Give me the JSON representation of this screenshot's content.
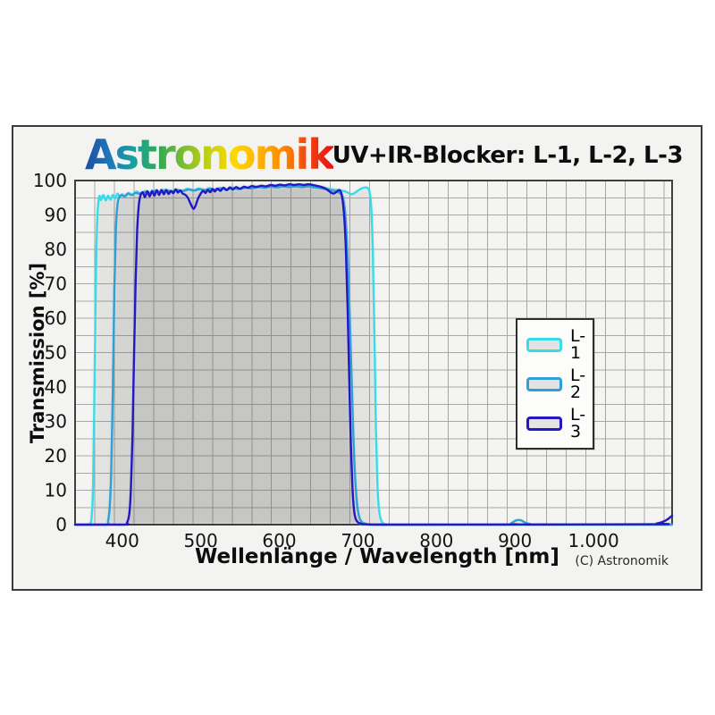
{
  "header": {
    "logo_text": "Astronomik",
    "logo_gradient": [
      "#1d4da0",
      "#1e78bb",
      "#17a29b",
      "#33ab52",
      "#7cbe33",
      "#c3d10e",
      "#ffd800",
      "#ffb300",
      "#ff8800",
      "#f2420e",
      "#e31414"
    ],
    "title": "UV+IR-Blocker: L-1, L-2, L-3"
  },
  "footer": {
    "copyright": "(C) Astronomik"
  },
  "chart_data": {
    "type": "line",
    "title": "UV+IR-Blocker: L-1, L-2, L-3",
    "xlabel": "Wellenlänge / Wavelength [nm]",
    "ylabel": "Transmission [%]",
    "xlim": [
      340,
      1100
    ],
    "ylim": [
      0,
      100
    ],
    "x_tick_values": [
      400,
      500,
      600,
      700,
      800,
      900,
      1000
    ],
    "x_tick_labels": [
      "400",
      "500",
      "600",
      "700",
      "800",
      "900",
      "1.000"
    ],
    "y_tick_values": [
      0,
      10,
      20,
      30,
      40,
      50,
      60,
      70,
      80,
      90,
      100
    ],
    "y_tick_labels": [
      "0",
      "10",
      "20",
      "30",
      "40",
      "50",
      "60",
      "70",
      "80",
      "90",
      "100"
    ],
    "x_minor_step": 25,
    "y_minor_step": 5,
    "grid": true,
    "legend_position": "right-middle",
    "colors": {
      "plot_bg": "#f4f4f2",
      "grid": "#a8a8a8",
      "frame": "#3f3f3f",
      "area_fill": "rgba(80,80,80,0.10)"
    },
    "series": [
      {
        "name": "L-1",
        "color": "#38dce8",
        "points": [
          [
            340,
            0
          ],
          [
            356,
            0
          ],
          [
            359,
            0.3
          ],
          [
            361,
            2
          ],
          [
            363,
            12
          ],
          [
            365,
            45
          ],
          [
            367,
            78
          ],
          [
            369,
            92
          ],
          [
            371,
            95.5
          ],
          [
            373,
            94.3
          ],
          [
            376,
            95.8
          ],
          [
            379,
            94.2
          ],
          [
            382,
            95.6
          ],
          [
            385,
            94.4
          ],
          [
            388,
            95.8
          ],
          [
            391,
            94.8
          ],
          [
            394,
            96.2
          ],
          [
            397,
            95.2
          ],
          [
            400,
            96
          ],
          [
            404,
            95.4
          ],
          [
            408,
            96.4
          ],
          [
            413,
            95.8
          ],
          [
            418,
            96.8
          ],
          [
            424,
            96.2
          ],
          [
            430,
            97
          ],
          [
            436,
            96.4
          ],
          [
            442,
            97.2
          ],
          [
            448,
            96.6
          ],
          [
            455,
            97.4
          ],
          [
            462,
            96.8
          ],
          [
            469,
            97.4
          ],
          [
            476,
            96.9
          ],
          [
            483,
            97.6
          ],
          [
            490,
            97
          ],
          [
            497,
            97.7
          ],
          [
            504,
            97.1
          ],
          [
            511,
            97.8
          ],
          [
            518,
            97.2
          ],
          [
            525,
            97.9
          ],
          [
            532,
            97.3
          ],
          [
            539,
            98
          ],
          [
            547,
            97.5
          ],
          [
            555,
            98.1
          ],
          [
            563,
            97.8
          ],
          [
            571,
            98.3
          ],
          [
            580,
            98.1
          ],
          [
            589,
            98.4
          ],
          [
            598,
            98.2
          ],
          [
            607,
            98.5
          ],
          [
            616,
            98.3
          ],
          [
            625,
            98.5
          ],
          [
            634,
            98.3
          ],
          [
            643,
            98.4
          ],
          [
            652,
            98.1
          ],
          [
            660,
            97.8
          ],
          [
            668,
            97.4
          ],
          [
            676,
            97.2
          ],
          [
            683,
            96.9
          ],
          [
            688,
            96.4
          ],
          [
            692,
            96
          ],
          [
            696,
            96.4
          ],
          [
            701,
            97.2
          ],
          [
            706,
            97.8
          ],
          [
            710,
            98
          ],
          [
            713,
            97.7
          ],
          [
            715,
            96.5
          ],
          [
            717,
            92
          ],
          [
            719,
            80
          ],
          [
            721,
            55
          ],
          [
            723,
            28
          ],
          [
            725,
            11
          ],
          [
            727,
            4
          ],
          [
            730,
            1
          ],
          [
            734,
            0.2
          ],
          [
            740,
            0
          ],
          [
            1100,
            0
          ]
        ]
      },
      {
        "name": "L-2",
        "color": "#2f9fd6",
        "points": [
          [
            340,
            0
          ],
          [
            379,
            0
          ],
          [
            382,
            1
          ],
          [
            384,
            5
          ],
          [
            386,
            15
          ],
          [
            388,
            38
          ],
          [
            390,
            68
          ],
          [
            392,
            86
          ],
          [
            394,
            93
          ],
          [
            396,
            95
          ],
          [
            399,
            95.8
          ],
          [
            403,
            95.4
          ],
          [
            407,
            96.2
          ],
          [
            412,
            95.8
          ],
          [
            417,
            96.4
          ],
          [
            423,
            96.1
          ],
          [
            429,
            96.6
          ],
          [
            436,
            96.3
          ],
          [
            443,
            96.9
          ],
          [
            450,
            96.6
          ],
          [
            457,
            97.1
          ],
          [
            464,
            96.8
          ],
          [
            471,
            97.2
          ],
          [
            478,
            97
          ],
          [
            485,
            97.4
          ],
          [
            492,
            97.1
          ],
          [
            499,
            97.5
          ],
          [
            506,
            97.2
          ],
          [
            513,
            97.6
          ],
          [
            520,
            97.3
          ],
          [
            527,
            97.7
          ],
          [
            534,
            97.4
          ],
          [
            541,
            97.8
          ],
          [
            549,
            97.5
          ],
          [
            557,
            97.9
          ],
          [
            565,
            97.7
          ],
          [
            573,
            98.1
          ],
          [
            581,
            97.9
          ],
          [
            589,
            98.2
          ],
          [
            597,
            98
          ],
          [
            605,
            98.3
          ],
          [
            613,
            98.1
          ],
          [
            621,
            98.3
          ],
          [
            629,
            98.1
          ],
          [
            637,
            98.3
          ],
          [
            645,
            98
          ],
          [
            652,
            97.8
          ],
          [
            659,
            97.5
          ],
          [
            666,
            97.2
          ],
          [
            672,
            96.8
          ],
          [
            677,
            96.3
          ],
          [
            681,
            95
          ],
          [
            684,
            90
          ],
          [
            687,
            78
          ],
          [
            690,
            58
          ],
          [
            693,
            35
          ],
          [
            696,
            16
          ],
          [
            699,
            6
          ],
          [
            702,
            2
          ],
          [
            706,
            0.6
          ],
          [
            711,
            0.2
          ],
          [
            718,
            0
          ],
          [
            888,
            0
          ],
          [
            895,
            0.4
          ],
          [
            901,
            1.2
          ],
          [
            907,
            1.3
          ],
          [
            913,
            0.6
          ],
          [
            920,
            0.15
          ],
          [
            928,
            0
          ],
          [
            1100,
            0
          ]
        ]
      },
      {
        "name": "L-3",
        "color": "#2318c4",
        "points": [
          [
            340,
            0
          ],
          [
            403,
            0
          ],
          [
            406,
            0.5
          ],
          [
            409,
            3
          ],
          [
            411,
            10
          ],
          [
            413,
            25
          ],
          [
            415,
            48
          ],
          [
            417,
            70
          ],
          [
            419,
            85
          ],
          [
            421,
            92.5
          ],
          [
            423,
            95.5
          ],
          [
            426,
            96.6
          ],
          [
            429,
            95.2
          ],
          [
            432,
            96.9
          ],
          [
            435,
            95.4
          ],
          [
            438,
            97
          ],
          [
            441,
            95.6
          ],
          [
            444,
            97.2
          ],
          [
            447,
            95.8
          ],
          [
            450,
            97.3
          ],
          [
            453,
            96
          ],
          [
            456,
            97.2
          ],
          [
            459,
            96.1
          ],
          [
            462,
            97
          ],
          [
            465,
            96.3
          ],
          [
            468,
            97.4
          ],
          [
            471,
            96.5
          ],
          [
            474,
            97.1
          ],
          [
            477,
            96.2
          ],
          [
            480,
            95.9
          ],
          [
            483,
            95.2
          ],
          [
            486,
            93.8
          ],
          [
            489,
            92.3
          ],
          [
            491,
            91.8
          ],
          [
            493,
            92.5
          ],
          [
            495,
            93.8
          ],
          [
            497,
            95
          ],
          [
            500,
            96.2
          ],
          [
            503,
            97
          ],
          [
            506,
            96.4
          ],
          [
            509,
            97.3
          ],
          [
            512,
            96.6
          ],
          [
            515,
            97.5
          ],
          [
            518,
            96.8
          ],
          [
            521,
            97.7
          ],
          [
            525,
            97
          ],
          [
            529,
            97.9
          ],
          [
            533,
            97.2
          ],
          [
            537,
            98
          ],
          [
            541,
            97.4
          ],
          [
            545,
            98.1
          ],
          [
            550,
            97.6
          ],
          [
            555,
            98.2
          ],
          [
            560,
            97.9
          ],
          [
            565,
            98.4
          ],
          [
            571,
            98.1
          ],
          [
            577,
            98.5
          ],
          [
            583,
            98.3
          ],
          [
            589,
            98.7
          ],
          [
            595,
            98.5
          ],
          [
            601,
            98.8
          ],
          [
            607,
            98.6
          ],
          [
            613,
            98.9
          ],
          [
            619,
            98.7
          ],
          [
            625,
            98.9
          ],
          [
            631,
            98.7
          ],
          [
            637,
            98.9
          ],
          [
            643,
            98.7
          ],
          [
            649,
            98.4
          ],
          [
            654,
            98.1
          ],
          [
            659,
            97.6
          ],
          [
            663,
            97
          ],
          [
            666,
            96.5
          ],
          [
            669,
            96.2
          ],
          [
            672,
            96.6
          ],
          [
            675,
            97.1
          ],
          [
            677,
            97.2
          ],
          [
            679,
            96.2
          ],
          [
            681,
            93.5
          ],
          [
            683,
            88
          ],
          [
            685,
            78
          ],
          [
            687,
            62
          ],
          [
            689,
            42
          ],
          [
            691,
            24
          ],
          [
            693,
            11
          ],
          [
            695,
            4.5
          ],
          [
            697,
            1.8
          ],
          [
            700,
            0.7
          ],
          [
            704,
            0.3
          ],
          [
            710,
            0.1
          ],
          [
            760,
            0
          ],
          [
            1070,
            0.1
          ],
          [
            1080,
            0.3
          ],
          [
            1088,
            0.8
          ],
          [
            1094,
            1.5
          ],
          [
            1100,
            2.6
          ]
        ]
      }
    ]
  }
}
